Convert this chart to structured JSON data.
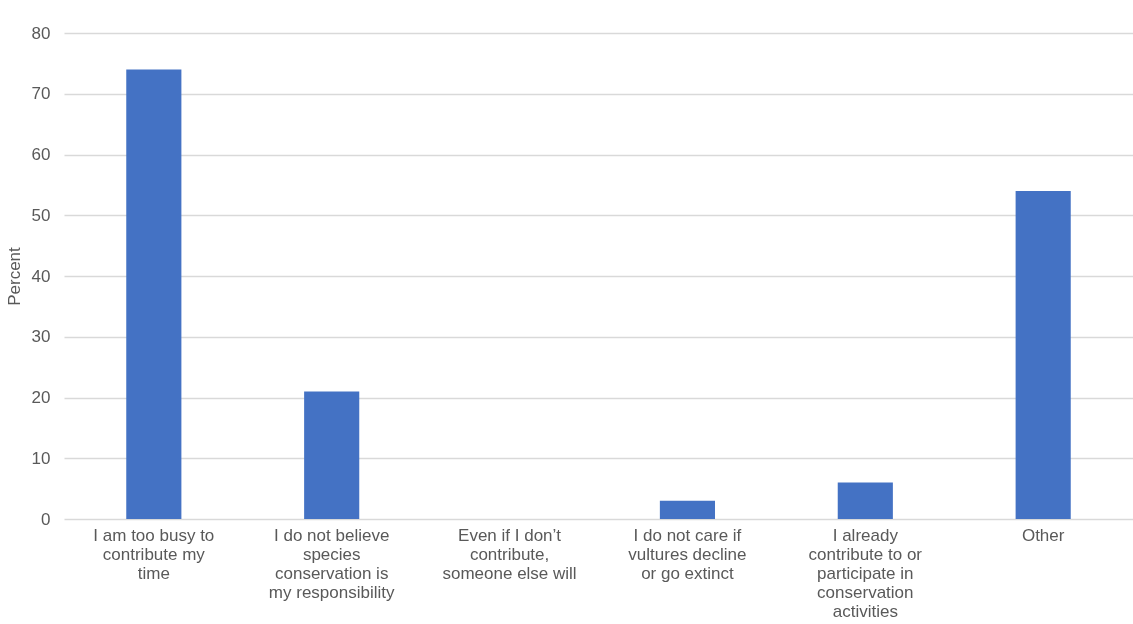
{
  "chart_data": {
    "type": "bar",
    "ylabel": "Percent",
    "categories": [
      "I am too busy to contribute my time",
      "I do not believe species conservation is my responsibility",
      "Even if I don’t contribute, someone else will",
      "I do not care if vultures decline or go extinct",
      "I already contribute to or participate in conservation activities",
      "Other"
    ],
    "values": [
      74,
      21,
      0,
      3,
      6,
      54
    ],
    "color": "#4472c4",
    "ylim": [
      0,
      80
    ],
    "yticks": [
      0,
      10,
      20,
      30,
      40,
      50,
      60,
      70,
      80
    ],
    "grid": "y"
  }
}
